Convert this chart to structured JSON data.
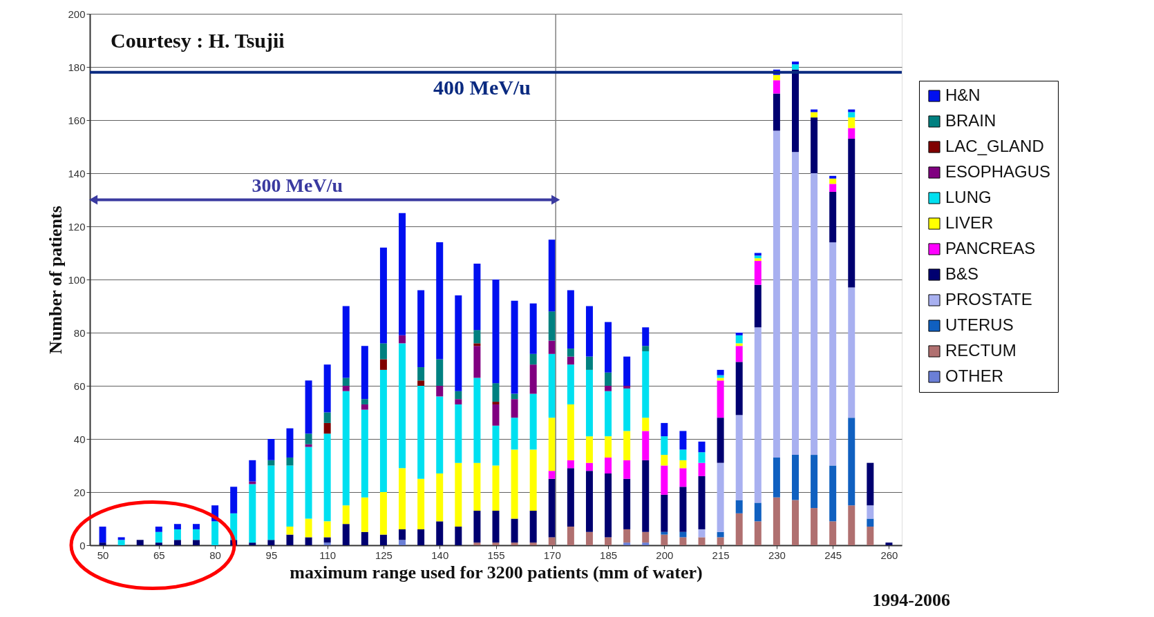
{
  "chart_data": {
    "type": "bar",
    "stacked": true,
    "xlabel": "maximum range used for 3200 patients  (mm of water)",
    "ylabel": "Number of patients",
    "x": [
      50,
      55,
      60,
      65,
      70,
      75,
      80,
      85,
      90,
      95,
      100,
      105,
      110,
      115,
      120,
      125,
      130,
      135,
      140,
      145,
      150,
      155,
      160,
      165,
      170,
      175,
      180,
      185,
      190,
      195,
      200,
      205,
      210,
      215,
      220,
      225,
      230,
      235,
      240,
      245,
      250,
      255,
      260
    ],
    "xlim": [
      47.5,
      262.5
    ],
    "xticks": [
      50,
      65,
      80,
      95,
      110,
      125,
      140,
      155,
      170,
      185,
      200,
      215,
      230,
      245,
      260
    ],
    "ylim": [
      0,
      200
    ],
    "yticks": [
      0,
      20,
      40,
      60,
      80,
      100,
      120,
      140,
      160,
      180,
      200
    ],
    "grid": "y",
    "legend": "right",
    "series": [
      {
        "name": "OTHER",
        "color": "#6b7fd6",
        "values": [
          0,
          0,
          0,
          0,
          0,
          0,
          0,
          0,
          0,
          0,
          0,
          0,
          1,
          0,
          0,
          0,
          2,
          0,
          0,
          0,
          0,
          0,
          0,
          0,
          0,
          0,
          0,
          0,
          1,
          1,
          0,
          0,
          0,
          0,
          0,
          0,
          0,
          0,
          0,
          0,
          0,
          0,
          0
        ]
      },
      {
        "name": "RECTUM",
        "color": "#b07070",
        "values": [
          0,
          0,
          0,
          0,
          0,
          0,
          0,
          0,
          0,
          0,
          0,
          0,
          0,
          0,
          0,
          0,
          0,
          0,
          0,
          0,
          1,
          1,
          1,
          1,
          3,
          7,
          5,
          3,
          5,
          4,
          4,
          3,
          3,
          3,
          12,
          9,
          18,
          17,
          14,
          9,
          15,
          7,
          0
        ]
      },
      {
        "name": "UTERUS",
        "color": "#1060c0",
        "values": [
          0,
          0,
          0,
          0,
          0,
          0,
          0,
          0,
          0,
          0,
          0,
          0,
          0,
          0,
          0,
          0,
          0,
          0,
          0,
          0,
          0,
          0,
          0,
          0,
          0,
          0,
          0,
          0,
          0,
          0,
          1,
          2,
          0,
          2,
          5,
          7,
          15,
          17,
          20,
          21,
          33,
          3,
          0
        ]
      },
      {
        "name": "PROSTATE",
        "color": "#a8b0f0",
        "values": [
          0,
          0,
          0,
          0,
          0,
          0,
          0,
          0,
          0,
          0,
          0,
          0,
          0,
          0,
          0,
          0,
          0,
          0,
          0,
          0,
          0,
          0,
          0,
          0,
          0,
          0,
          0,
          0,
          0,
          0,
          0,
          0,
          3,
          26,
          32,
          66,
          123,
          114,
          106,
          84,
          49,
          5,
          0
        ]
      },
      {
        "name": "B&S",
        "color": "#000070",
        "values": [
          1,
          0,
          2,
          1,
          2,
          2,
          0,
          2,
          1,
          2,
          4,
          3,
          2,
          8,
          5,
          4,
          4,
          6,
          9,
          7,
          12,
          12,
          9,
          12,
          22,
          22,
          23,
          24,
          19,
          27,
          14,
          17,
          20,
          17,
          20,
          16,
          14,
          31,
          21,
          19,
          56,
          16,
          1
        ]
      },
      {
        "name": "PANCREAS",
        "color": "#ff00ff",
        "values": [
          0,
          0,
          0,
          0,
          0,
          0,
          0,
          0,
          0,
          0,
          0,
          0,
          0,
          0,
          0,
          0,
          0,
          0,
          0,
          0,
          0,
          0,
          0,
          0,
          3,
          3,
          3,
          6,
          7,
          11,
          11,
          7,
          5,
          14,
          6,
          9,
          5,
          0,
          0,
          3,
          4,
          0,
          0
        ]
      },
      {
        "name": "LIVER",
        "color": "#ffff00",
        "values": [
          0,
          0,
          0,
          0,
          0,
          0,
          0,
          0,
          0,
          0,
          3,
          7,
          6,
          7,
          13,
          16,
          23,
          19,
          18,
          24,
          18,
          17,
          26,
          23,
          20,
          21,
          10,
          8,
          11,
          5,
          4,
          3,
          0,
          1,
          1,
          1,
          2,
          0,
          2,
          2,
          4,
          0,
          0
        ]
      },
      {
        "name": "LUNG",
        "color": "#00e0f0",
        "values": [
          0,
          2,
          0,
          4,
          4,
          4,
          9,
          10,
          22,
          28,
          23,
          27,
          33,
          43,
          33,
          46,
          47,
          35,
          29,
          22,
          32,
          15,
          12,
          21,
          24,
          15,
          25,
          17,
          16,
          25,
          7,
          4,
          4,
          1,
          3,
          1,
          0,
          2,
          0,
          0,
          2,
          0,
          0
        ]
      },
      {
        "name": "ESOPHAGUS",
        "color": "#800080",
        "values": [
          0,
          0,
          0,
          0,
          0,
          0,
          0,
          0,
          1,
          0,
          0,
          1,
          0,
          2,
          2,
          0,
          3,
          0,
          4,
          2,
          12,
          8,
          7,
          11,
          5,
          3,
          0,
          2,
          1,
          0,
          0,
          0,
          0,
          0,
          0,
          0,
          0,
          0,
          0,
          0,
          0,
          0,
          0
        ]
      },
      {
        "name": "LAC_GLAND",
        "color": "#800000",
        "values": [
          0,
          0,
          0,
          0,
          0,
          0,
          0,
          0,
          0,
          0,
          0,
          0,
          4,
          0,
          0,
          4,
          0,
          2,
          0,
          0,
          1,
          1,
          0,
          0,
          0,
          0,
          0,
          0,
          0,
          0,
          0,
          0,
          0,
          0,
          0,
          0,
          0,
          0,
          0,
          0,
          0,
          0,
          0
        ]
      },
      {
        "name": "BRAIN",
        "color": "#008080",
        "values": [
          0,
          0,
          0,
          0,
          0,
          0,
          0,
          0,
          0,
          2,
          3,
          4,
          4,
          3,
          2,
          6,
          0,
          5,
          10,
          3,
          5,
          7,
          2,
          4,
          11,
          3,
          5,
          5,
          0,
          2,
          0,
          0,
          0,
          0,
          0,
          0,
          0,
          0,
          0,
          0,
          0,
          0,
          0
        ]
      },
      {
        "name": "H&N",
        "color": "#0010f0",
        "values": [
          6,
          1,
          0,
          2,
          2,
          2,
          6,
          10,
          8,
          8,
          11,
          20,
          18,
          27,
          20,
          36,
          46,
          29,
          44,
          36,
          25,
          39,
          35,
          19,
          27,
          22,
          19,
          19,
          11,
          7,
          5,
          7,
          4,
          2,
          1,
          1,
          2,
          1,
          1,
          1,
          1,
          0,
          0
        ]
      },
      {
        "type": "line",
        "color": "#3a3aa0",
        "x": [
          47.5,
          171
        ],
        "values": [
          130,
          130
        ],
        "marker": "triangle"
      }
    ],
    "ref_lines": [
      {
        "axis": "x",
        "value": 171,
        "color": "#808080"
      },
      {
        "axis": "y",
        "value": 178,
        "label": "400 MeV/u",
        "color": "#0a2a80"
      }
    ],
    "annotations": [
      {
        "text": "300 MeV/u",
        "x": 102,
        "y": 130
      },
      "Courtesy : H. Tsujii",
      "1994-2006"
    ]
  }
}
